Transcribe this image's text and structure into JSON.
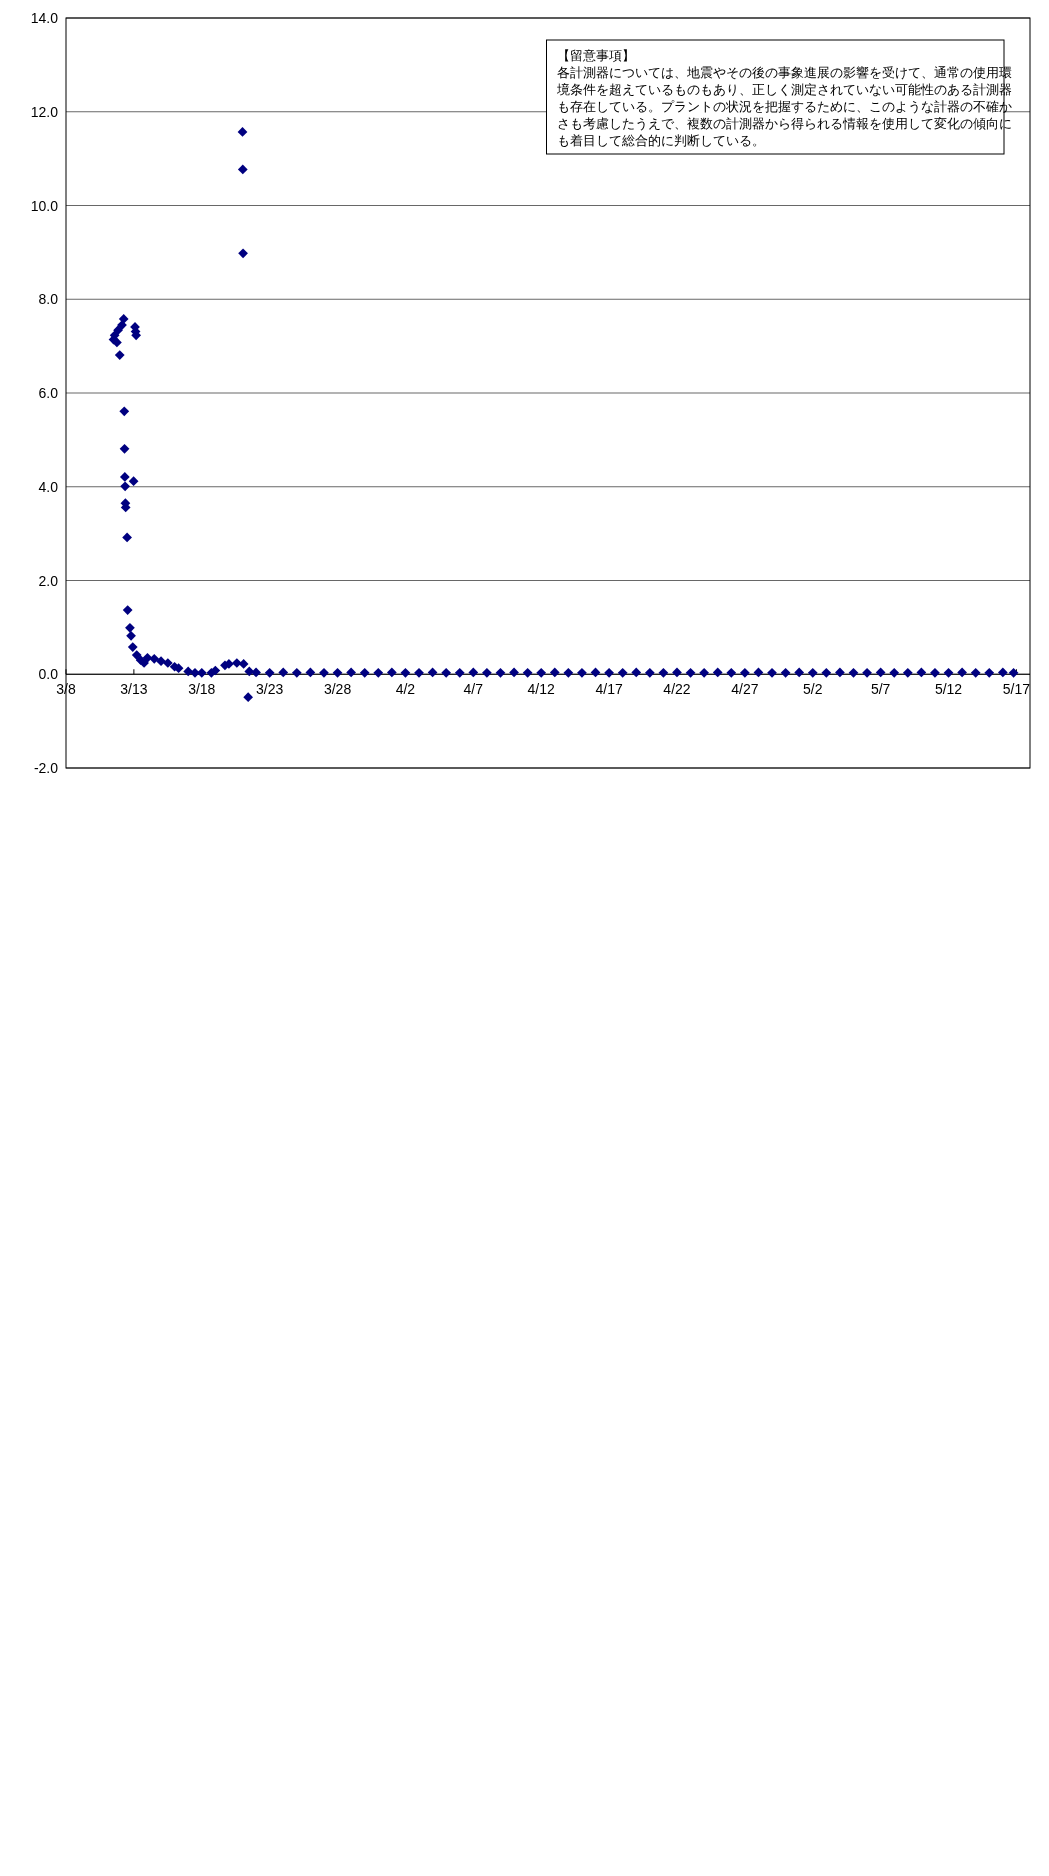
{
  "chart_data": {
    "type": "scatter",
    "marker": "diamond",
    "grid": "y",
    "xlim": [
      "--03-08",
      "--05-18"
    ],
    "xticks": [
      {
        "value": "--03-08",
        "label": "3/8"
      },
      {
        "value": "--03-13",
        "label": "3/13"
      },
      {
        "value": "--03-18",
        "label": "3/18"
      },
      {
        "value": "--03-23",
        "label": "3/23"
      },
      {
        "value": "--03-28",
        "label": "3/28"
      },
      {
        "value": "--04-02",
        "label": "4/2"
      },
      {
        "value": "--04-07",
        "label": "4/7"
      },
      {
        "value": "--04-12",
        "label": "4/12"
      },
      {
        "value": "--04-17",
        "label": "4/17"
      },
      {
        "value": "--04-22",
        "label": "4/22"
      },
      {
        "value": "--04-27",
        "label": "4/27"
      },
      {
        "value": "--05-02",
        "label": "5/2"
      },
      {
        "value": "--05-07",
        "label": "5/7"
      },
      {
        "value": "--05-12",
        "label": "5/12"
      },
      {
        "value": "--05-17",
        "label": "5/17"
      }
    ],
    "ylim": [
      -2,
      14
    ],
    "yticks": [
      {
        "value": -2,
        "label": "-2.0"
      },
      {
        "value": 0,
        "label": "0.0"
      },
      {
        "value": 2,
        "label": "2.0"
      },
      {
        "value": 4,
        "label": "4.0"
      },
      {
        "value": 6,
        "label": "6.0"
      },
      {
        "value": 8,
        "label": "8.0"
      },
      {
        "value": 10,
        "label": "10.0"
      },
      {
        "value": 12,
        "label": "12.0"
      },
      {
        "value": 14,
        "label": "14.0"
      }
    ],
    "annotations": [
      "【留意事項】",
      "各計測器については、地震やその後の事象進展の影響を受けて、通常の使用環境条件を超えているものもあり、正しく測定されていない可能性のある計測器も存在している。プラントの状況を把握するために、このような計器の不確かさも考慮したうえで、複数の計測器から得られる情報を使用して変化の傾向にも着目して総合的に判断している。"
    ],
    "series": [
      {
        "color": "#000080",
        "x": [
          "--03-11T12:00",
          "--03-11T14:00",
          "--03-11T18:00",
          "--03-11T20:00",
          "--03-11T23:00",
          "--03-12T03:00",
          "--03-12T06:00",
          "--03-12T07:00",
          "--03-12T07:30",
          "--03-12T08:00",
          "--03-12T08:30",
          "--03-12T09:00",
          "--03-12T09:30",
          "--03-12T12:00",
          "--03-12T13:00",
          "--03-12T17:00",
          "--03-12T19:00",
          "--03-12T22:00",
          "--03-12T23:30",
          "--03-13T02:00",
          "--03-13T03:00",
          "--03-13T04:00",
          "--03-13T05:00",
          "--03-13T12:00",
          "--03-13T18:00",
          "--03-14T00:00",
          "--03-14T12:00",
          "--03-15T00:00",
          "--03-15T12:00",
          "--03-16T00:00",
          "--03-16T07:00",
          "--03-17T00:00",
          "--03-17T12:00",
          "--03-18T00:00",
          "--03-18T17:00",
          "--03-19T00:00",
          "--03-19T17:00",
          "--03-20T00:00",
          "--03-20T14:00",
          "--03-21T00:00",
          "--03-21T00:30",
          "--03-21T01:00",
          "--03-21T02:00",
          "--03-21T10:00",
          "--03-21T12:00",
          "--03-22T00:00",
          "--03-23T00:00",
          "--03-24T00:00",
          "--03-25T00:00",
          "--03-26T00:00",
          "--03-27T00:00",
          "--03-28T00:00",
          "--03-29T00:00",
          "--03-30T00:00",
          "--03-31T00:00",
          "--04-01T00:00",
          "--04-02T00:00",
          "--04-03T00:00",
          "--04-04T00:00",
          "--04-05T00:00",
          "--04-06T00:00",
          "--04-07T00:00",
          "--04-08T00:00",
          "--04-09T00:00",
          "--04-10T00:00",
          "--04-11T00:00",
          "--04-12T00:00",
          "--04-13T00:00",
          "--04-14T00:00",
          "--04-15T00:00",
          "--04-16T00:00",
          "--04-17T00:00",
          "--04-18T00:00",
          "--04-19T00:00",
          "--04-20T00:00",
          "--04-21T00:00",
          "--04-22T00:00",
          "--04-23T00:00",
          "--04-24T00:00",
          "--04-25T00:00",
          "--04-26T00:00",
          "--04-27T00:00",
          "--04-28T00:00",
          "--04-29T00:00",
          "--04-30T00:00",
          "--05-01T00:00",
          "--05-02T00:00",
          "--05-03T00:00",
          "--05-04T00:00",
          "--05-05T00:00",
          "--05-06T00:00",
          "--05-07T00:00",
          "--05-08T00:00",
          "--05-09T00:00",
          "--05-10T00:00",
          "--05-11T00:00",
          "--05-12T00:00",
          "--05-13T00:00",
          "--05-14T00:00",
          "--05-15T00:00",
          "--05-16T00:00",
          "--05-16T19:00"
        ],
        "values": [
          7.14,
          7.23,
          7.08,
          7.34,
          6.81,
          7.45,
          7.58,
          5.61,
          4.81,
          4.21,
          4.01,
          3.65,
          3.56,
          2.92,
          1.37,
          0.99,
          0.82,
          0.58,
          4.12,
          7.41,
          7.31,
          7.23,
          0.41,
          0.3,
          0.24,
          0.35,
          0.33,
          0.28,
          0.24,
          0.16,
          0.13,
          0.06,
          0.03,
          0.03,
          0.03,
          0.08,
          0.19,
          0.22,
          0.24,
          11.57,
          10.77,
          8.98,
          0.22,
          -0.49,
          0.06,
          0.04,
          0.03,
          0.04,
          0.03,
          0.04,
          0.03,
          0.03,
          0.04,
          0.03,
          0.03,
          0.04,
          0.03,
          0.03,
          0.04,
          0.03,
          0.03,
          0.04,
          0.03,
          0.03,
          0.04,
          0.03,
          0.03,
          0.04,
          0.03,
          0.03,
          0.04,
          0.03,
          0.03,
          0.04,
          0.03,
          0.03,
          0.04,
          0.03,
          0.03,
          0.04,
          0.03,
          0.03,
          0.04,
          0.03,
          0.03,
          0.04,
          0.03,
          0.03,
          0.04,
          0.03,
          0.03,
          0.04,
          0.03,
          0.03,
          0.04,
          0.03,
          0.03,
          0.04,
          0.03,
          0.03,
          0.04,
          0.03
        ]
      }
    ]
  }
}
